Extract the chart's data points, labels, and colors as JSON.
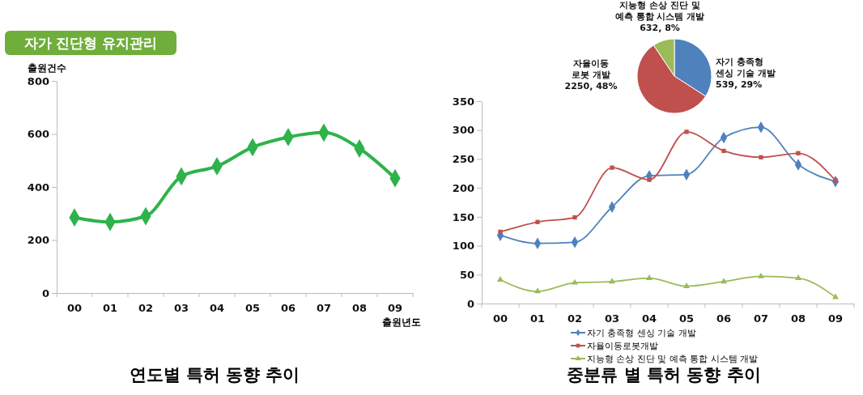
{
  "chart_data": [
    {
      "type": "line",
      "title": "자가 진단형 유지관리",
      "xlabel": "출원년도",
      "ylabel": "출원건수",
      "annotations": [
        "연도별 특허 동향 추이"
      ],
      "categories": [
        "00",
        "01",
        "02",
        "03",
        "04",
        "05",
        "06",
        "07",
        "08",
        "09"
      ],
      "series": [
        {
          "color": "#2db34a",
          "values": [
            285,
            268,
            290,
            440,
            478,
            550,
            588,
            605,
            545,
            433
          ]
        }
      ],
      "ylim": [
        0,
        800
      ],
      "yticks": [
        0,
        200,
        400,
        600,
        800
      ],
      "grid": false,
      "legend": false,
      "marker": "diamond",
      "line_style": "solid"
    },
    {
      "type": "pie",
      "categories": [
        "자기 충족형\n센싱 기술 개발",
        "자율이동\n로봇 개발",
        "지능형 손상 진단 및\n예측 통합 시스템 개발"
      ],
      "values": [
        29,
        48,
        8
      ],
      "value_labels": [
        "539, 29%",
        "2250, 48%",
        "632, 8%"
      ],
      "colors": [
        "#4f81bd",
        "#c0504d",
        "#9bbb59"
      ]
    },
    {
      "type": "line",
      "annotations": [
        "중분류 별 특허 동향 추이"
      ],
      "categories": [
        "00",
        "01",
        "02",
        "03",
        "04",
        "05",
        "06",
        "07",
        "08",
        "09"
      ],
      "series": [
        {
          "name": "자기 충족형 센싱 기술 개발",
          "color": "#4f81bd",
          "marker": "diamond",
          "values": [
            118,
            104,
            106,
            167,
            221,
            223,
            287,
            305,
            240,
            211
          ]
        },
        {
          "name": "자율이동로봇개발",
          "color": "#c0504d",
          "marker": "square",
          "values": [
            124,
            141,
            149,
            235,
            214,
            297,
            264,
            253,
            260,
            213
          ]
        },
        {
          "name": "지능형 손상 진단 및 예측 통합 시스템 개발",
          "color": "#9bbb59",
          "marker": "triangle",
          "values": [
            41,
            21,
            36,
            38,
            44,
            30,
            38,
            47,
            44,
            11
          ]
        }
      ],
      "ylim": [
        0,
        350
      ],
      "yticks": [
        0,
        50,
        100,
        150,
        200,
        250,
        300,
        350
      ],
      "grid": false,
      "legend": "bottom",
      "line_style": "solid"
    }
  ]
}
